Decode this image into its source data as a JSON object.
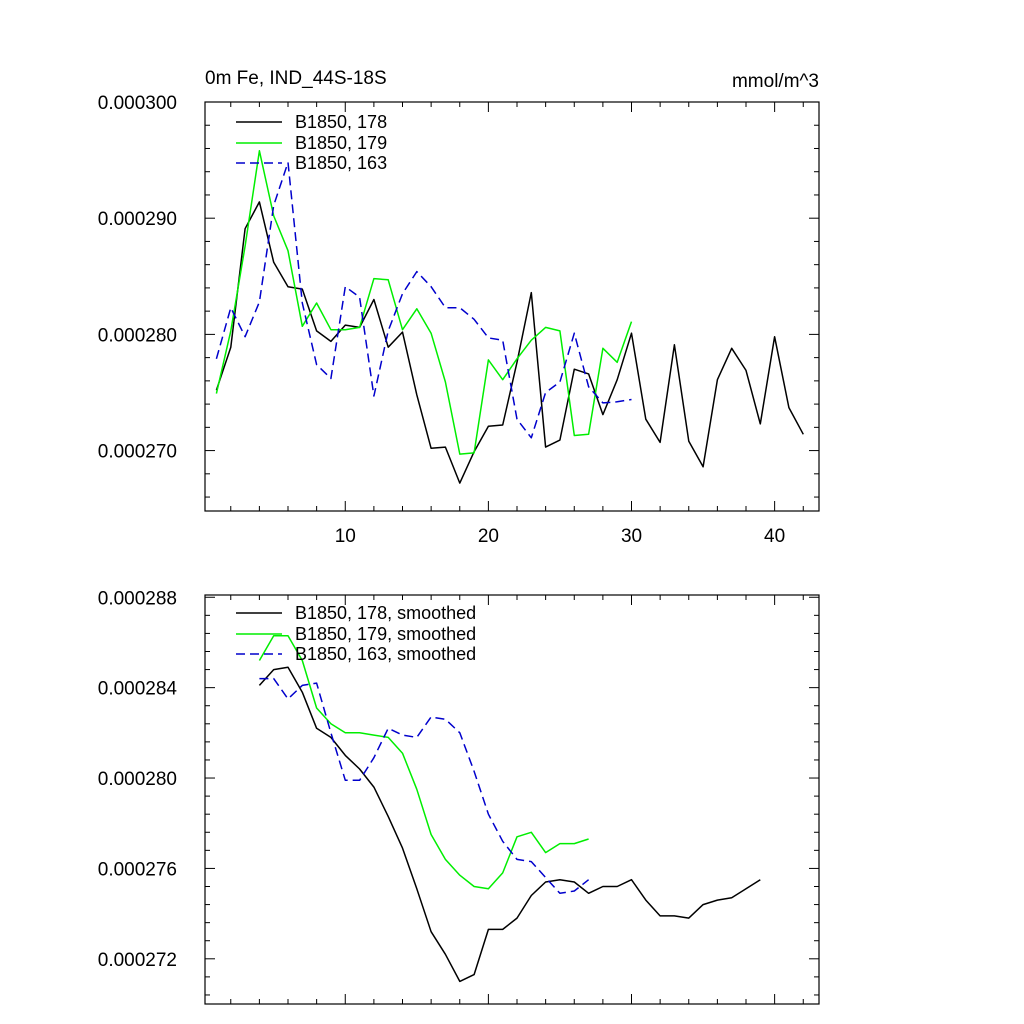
{
  "chart_data": [
    {
      "type": "line",
      "title": "0m Fe, IND_44S-18S",
      "units": "mmol/m^3",
      "xlim": [
        0.2,
        43.1
      ],
      "ylim": [
        0.0002648,
        0.0003
      ],
      "xticks": [
        10,
        20,
        30,
        40
      ],
      "xtick_labels": [
        "10",
        "20",
        "30",
        "40"
      ],
      "yticks": [
        0.00027,
        0.00028,
        0.00029,
        0.0003
      ],
      "ytick_labels": [
        "0.000270",
        "0.000280",
        "0.000290",
        "0.000300"
      ],
      "legend_position": "top-left",
      "series": [
        {
          "name": "B1850, 178",
          "color": "#000000",
          "dash": "solid",
          "x": [
            1,
            2,
            3,
            4,
            5,
            6,
            7,
            8,
            9,
            10,
            11,
            12,
            13,
            14,
            15,
            16,
            17,
            18,
            19,
            20,
            21,
            22,
            23,
            24,
            25,
            26,
            27,
            28,
            29,
            30,
            31,
            32,
            33,
            34,
            35,
            36,
            37,
            38,
            39,
            40,
            41,
            42
          ],
          "y": [
            0.0002752,
            0.0002789,
            0.0002891,
            0.0002914,
            0.0002862,
            0.0002841,
            0.0002839,
            0.0002803,
            0.0002794,
            0.0002808,
            0.0002806,
            0.000283,
            0.0002789,
            0.0002802,
            0.0002748,
            0.0002702,
            0.0002703,
            0.0002672,
            0.0002699,
            0.0002721,
            0.0002722,
            0.0002776,
            0.0002836,
            0.0002703,
            0.0002709,
            0.000277,
            0.0002766,
            0.0002731,
            0.0002761,
            0.0002801,
            0.0002727,
            0.0002707,
            0.0002791,
            0.0002708,
            0.0002686,
            0.0002761,
            0.0002788,
            0.0002769,
            0.0002723,
            0.0002798,
            0.0002737,
            0.0002714
          ]
        },
        {
          "name": "B1850, 179",
          "color": "#00ee00",
          "dash": "solid",
          "x": [
            1,
            2,
            3,
            4,
            5,
            6,
            7,
            8,
            9,
            10,
            11,
            12,
            13,
            14,
            15,
            16,
            17,
            18,
            19,
            20,
            21,
            22,
            23,
            24,
            25,
            26,
            27,
            28,
            29,
            30
          ],
          "y": [
            0.0002749,
            0.0002803,
            0.0002876,
            0.0002958,
            0.0002902,
            0.0002872,
            0.0002807,
            0.0002827,
            0.0002804,
            0.0002804,
            0.0002806,
            0.0002848,
            0.0002847,
            0.0002804,
            0.0002822,
            0.0002801,
            0.0002759,
            0.0002697,
            0.0002698,
            0.0002778,
            0.0002761,
            0.0002779,
            0.0002795,
            0.0002806,
            0.0002803,
            0.0002713,
            0.0002714,
            0.0002788,
            0.0002776,
            0.0002811
          ]
        },
        {
          "name": "B1850, 163",
          "color": "#0000cc",
          "dash": "dashed",
          "x": [
            1,
            2,
            3,
            4,
            5,
            6,
            7,
            8,
            9,
            10,
            11,
            12,
            13,
            14,
            15,
            16,
            17,
            18,
            19,
            20,
            21,
            22,
            23,
            24,
            25,
            26,
            27,
            28,
            29,
            30
          ],
          "y": [
            0.0002779,
            0.0002823,
            0.0002798,
            0.0002828,
            0.0002911,
            0.0002948,
            0.0002827,
            0.0002774,
            0.0002762,
            0.0002841,
            0.0002832,
            0.0002747,
            0.0002803,
            0.0002835,
            0.0002854,
            0.0002841,
            0.0002823,
            0.0002823,
            0.0002813,
            0.0002797,
            0.0002795,
            0.0002727,
            0.0002711,
            0.000275,
            0.0002759,
            0.0002801,
            0.0002755,
            0.0002741,
            0.0002742,
            0.0002744
          ]
        }
      ]
    },
    {
      "type": "line",
      "title": "",
      "xlim": [
        0.2,
        43.1
      ],
      "ylim": [
        0.00027,
        0.0002881
      ],
      "xticks": [
        10,
        20,
        30,
        40
      ],
      "xtick_labels": [],
      "yticks": [
        0.000272,
        0.000276,
        0.00028,
        0.000284,
        0.000288
      ],
      "ytick_labels": [
        "0.000272",
        "0.000276",
        "0.000280",
        "0.000284",
        "0.000288"
      ],
      "legend_position": "top-left",
      "series": [
        {
          "name": "B1850, 178, smoothed",
          "color": "#000000",
          "dash": "solid",
          "x": [
            4,
            5,
            6,
            7,
            8,
            9,
            10,
            11,
            12,
            13,
            14,
            15,
            16,
            17,
            18,
            19,
            20,
            21,
            22,
            23,
            24,
            25,
            26,
            27,
            28,
            29,
            30,
            31,
            32,
            33,
            34,
            35,
            36,
            37,
            38,
            39
          ],
          "y": [
            0.0002841,
            0.0002848,
            0.0002849,
            0.0002838,
            0.0002822,
            0.0002818,
            0.000281,
            0.0002804,
            0.0002796,
            0.0002783,
            0.0002769,
            0.0002751,
            0.0002732,
            0.0002722,
            0.000271,
            0.0002713,
            0.0002733,
            0.0002733,
            0.0002738,
            0.0002748,
            0.0002754,
            0.0002755,
            0.0002754,
            0.0002749,
            0.0002752,
            0.0002752,
            0.0002755,
            0.0002746,
            0.0002739,
            0.0002739,
            0.0002738,
            0.0002744,
            0.0002746,
            0.0002747,
            0.0002751,
            0.0002755
          ]
        },
        {
          "name": "B1850, 179, smoothed",
          "color": "#00ee00",
          "dash": "solid",
          "x": [
            4,
            5,
            6,
            7,
            8,
            9,
            10,
            11,
            12,
            13,
            14,
            15,
            16,
            17,
            18,
            19,
            20,
            21,
            22,
            23,
            24,
            25,
            26,
            27
          ],
          "y": [
            0.0002852,
            0.0002863,
            0.0002863,
            0.0002852,
            0.0002831,
            0.0002824,
            0.000282,
            0.000282,
            0.0002819,
            0.0002818,
            0.0002811,
            0.0002795,
            0.0002775,
            0.0002764,
            0.0002757,
            0.0002752,
            0.0002751,
            0.0002758,
            0.0002774,
            0.0002776,
            0.0002767,
            0.0002771,
            0.0002771,
            0.0002773
          ]
        },
        {
          "name": "B1850, 163, smoothed",
          "color": "#0000cc",
          "dash": "dashed",
          "x": [
            4,
            5,
            6,
            7,
            8,
            9,
            10,
            11,
            12,
            13,
            14,
            15,
            16,
            17,
            18,
            19,
            20,
            21,
            22,
            23,
            24,
            25,
            26,
            27
          ],
          "y": [
            0.0002844,
            0.0002844,
            0.0002835,
            0.0002841,
            0.0002842,
            0.000282,
            0.0002799,
            0.0002799,
            0.0002809,
            0.0002822,
            0.0002819,
            0.0002818,
            0.0002827,
            0.0002826,
            0.000282,
            0.0002803,
            0.0002784,
            0.0002772,
            0.0002764,
            0.0002763,
            0.0002756,
            0.0002749,
            0.000275,
            0.0002755
          ]
        }
      ]
    }
  ]
}
